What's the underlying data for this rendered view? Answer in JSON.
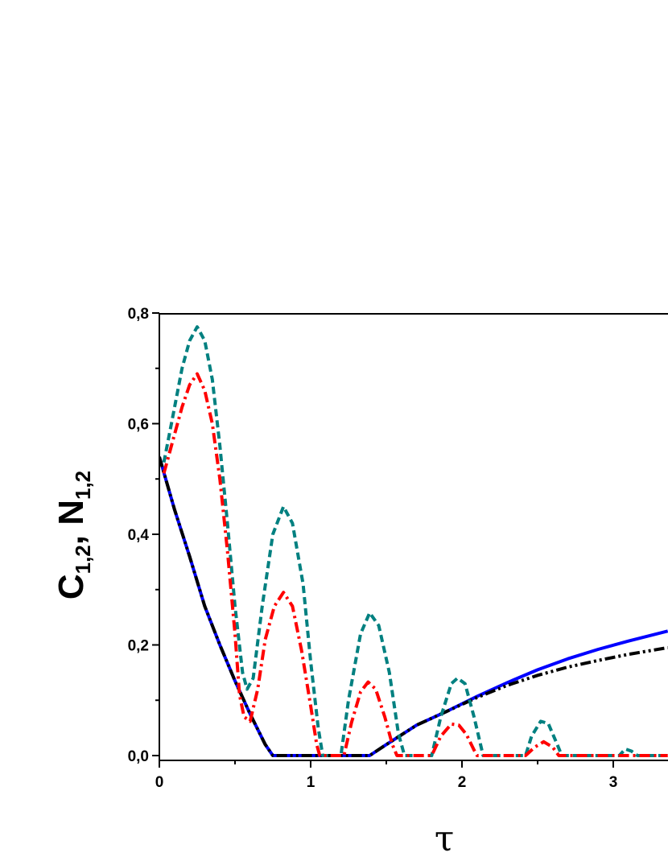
{
  "chart_data": {
    "type": "line",
    "xlabel": "τ",
    "ylabel": {
      "main": "C",
      "sub1": "1,2",
      "sep": ", N",
      "sub2": "1,2"
    },
    "xlim": [
      0,
      3.36
    ],
    "ylim": [
      -0.012,
      0.8
    ],
    "x_ticks": [
      0,
      1,
      2,
      3
    ],
    "x_tick_labels": [
      "0",
      "1",
      "2",
      "3"
    ],
    "y_ticks": [
      0.0,
      0.2,
      0.4,
      0.6,
      0.8
    ],
    "y_tick_labels": [
      "0,0",
      "0,2",
      "0,4",
      "0,6",
      "0,8"
    ],
    "grid": false,
    "series": [
      {
        "color": "#0000ff",
        "style": "solid",
        "points": [
          [
            0,
            0.54
          ],
          [
            0.1,
            0.445
          ],
          [
            0.2,
            0.36
          ],
          [
            0.3,
            0.27
          ],
          [
            0.4,
            0.2
          ],
          [
            0.5,
            0.135
          ],
          [
            0.6,
            0.075
          ],
          [
            0.7,
            0.02
          ],
          [
            0.75,
            0
          ],
          [
            1.1,
            0
          ],
          [
            1.39,
            0
          ],
          [
            1.5,
            0.02
          ],
          [
            1.7,
            0.055
          ],
          [
            1.9,
            0.08
          ],
          [
            2.1,
            0.107
          ],
          [
            2.3,
            0.132
          ],
          [
            2.5,
            0.155
          ],
          [
            2.7,
            0.175
          ],
          [
            2.9,
            0.192
          ],
          [
            3.1,
            0.207
          ],
          [
            3.36,
            0.225
          ]
        ]
      },
      {
        "color": "#000000",
        "style": "dashdotdot",
        "points": [
          [
            0,
            0.54
          ],
          [
            0.1,
            0.445
          ],
          [
            0.2,
            0.36
          ],
          [
            0.3,
            0.27
          ],
          [
            0.4,
            0.2
          ],
          [
            0.5,
            0.135
          ],
          [
            0.6,
            0.075
          ],
          [
            0.7,
            0.02
          ],
          [
            0.75,
            0
          ],
          [
            1.1,
            0
          ],
          [
            1.39,
            0
          ],
          [
            1.5,
            0.02
          ],
          [
            1.7,
            0.055
          ],
          [
            1.9,
            0.08
          ],
          [
            2.1,
            0.105
          ],
          [
            2.3,
            0.127
          ],
          [
            2.5,
            0.145
          ],
          [
            2.7,
            0.16
          ],
          [
            2.9,
            0.172
          ],
          [
            3.1,
            0.183
          ],
          [
            3.36,
            0.195
          ]
        ]
      },
      {
        "color": "#008080",
        "style": "dashed",
        "points": [
          [
            0.03,
            0.53
          ],
          [
            0.08,
            0.6
          ],
          [
            0.15,
            0.7
          ],
          [
            0.2,
            0.75
          ],
          [
            0.25,
            0.775
          ],
          [
            0.3,
            0.75
          ],
          [
            0.35,
            0.68
          ],
          [
            0.4,
            0.56
          ],
          [
            0.45,
            0.42
          ],
          [
            0.5,
            0.27
          ],
          [
            0.55,
            0.15
          ],
          [
            0.58,
            0.12
          ],
          [
            0.62,
            0.14
          ],
          [
            0.68,
            0.27
          ],
          [
            0.75,
            0.4
          ],
          [
            0.82,
            0.45
          ],
          [
            0.88,
            0.42
          ],
          [
            0.95,
            0.31
          ],
          [
            1.0,
            0.17
          ],
          [
            1.05,
            0.05
          ],
          [
            1.08,
            0
          ],
          [
            1.2,
            0
          ],
          [
            1.25,
            0.1
          ],
          [
            1.33,
            0.22
          ],
          [
            1.39,
            0.258
          ],
          [
            1.45,
            0.235
          ],
          [
            1.52,
            0.15
          ],
          [
            1.58,
            0.04
          ],
          [
            1.62,
            0
          ],
          [
            1.8,
            0
          ],
          [
            1.86,
            0.07
          ],
          [
            1.93,
            0.13
          ],
          [
            1.97,
            0.14
          ],
          [
            2.02,
            0.13
          ],
          [
            2.08,
            0.07
          ],
          [
            2.14,
            0
          ],
          [
            2.42,
            0
          ],
          [
            2.46,
            0.035
          ],
          [
            2.52,
            0.062
          ],
          [
            2.57,
            0.058
          ],
          [
            2.63,
            0.02
          ],
          [
            2.66,
            0
          ],
          [
            3.04,
            0
          ],
          [
            3.08,
            0.012
          ],
          [
            3.12,
            0.008
          ],
          [
            3.16,
            0
          ],
          [
            3.36,
            0
          ]
        ]
      },
      {
        "color": "#ff0000",
        "style": "dashdot",
        "points": [
          [
            0.03,
            0.51
          ],
          [
            0.08,
            0.56
          ],
          [
            0.15,
            0.63
          ],
          [
            0.2,
            0.67
          ],
          [
            0.25,
            0.69
          ],
          [
            0.3,
            0.66
          ],
          [
            0.35,
            0.6
          ],
          [
            0.4,
            0.5
          ],
          [
            0.45,
            0.37
          ],
          [
            0.5,
            0.22
          ],
          [
            0.53,
            0.11
          ],
          [
            0.56,
            0.07
          ],
          [
            0.6,
            0.062
          ],
          [
            0.65,
            0.12
          ],
          [
            0.7,
            0.21
          ],
          [
            0.76,
            0.27
          ],
          [
            0.82,
            0.295
          ],
          [
            0.88,
            0.27
          ],
          [
            0.94,
            0.19
          ],
          [
            1.0,
            0.09
          ],
          [
            1.04,
            0.02
          ],
          [
            1.06,
            0
          ],
          [
            1.22,
            0
          ],
          [
            1.27,
            0.06
          ],
          [
            1.33,
            0.115
          ],
          [
            1.38,
            0.133
          ],
          [
            1.43,
            0.12
          ],
          [
            1.49,
            0.07
          ],
          [
            1.54,
            0.02
          ],
          [
            1.57,
            0
          ],
          [
            1.8,
            0
          ],
          [
            1.86,
            0.035
          ],
          [
            1.93,
            0.057
          ],
          [
            1.98,
            0.055
          ],
          [
            2.03,
            0.038
          ],
          [
            2.08,
            0.01
          ],
          [
            2.1,
            0
          ],
          [
            2.42,
            0
          ],
          [
            2.48,
            0.015
          ],
          [
            2.54,
            0.025
          ],
          [
            2.6,
            0.015
          ],
          [
            2.64,
            0
          ],
          [
            3.36,
            0
          ]
        ]
      }
    ]
  }
}
